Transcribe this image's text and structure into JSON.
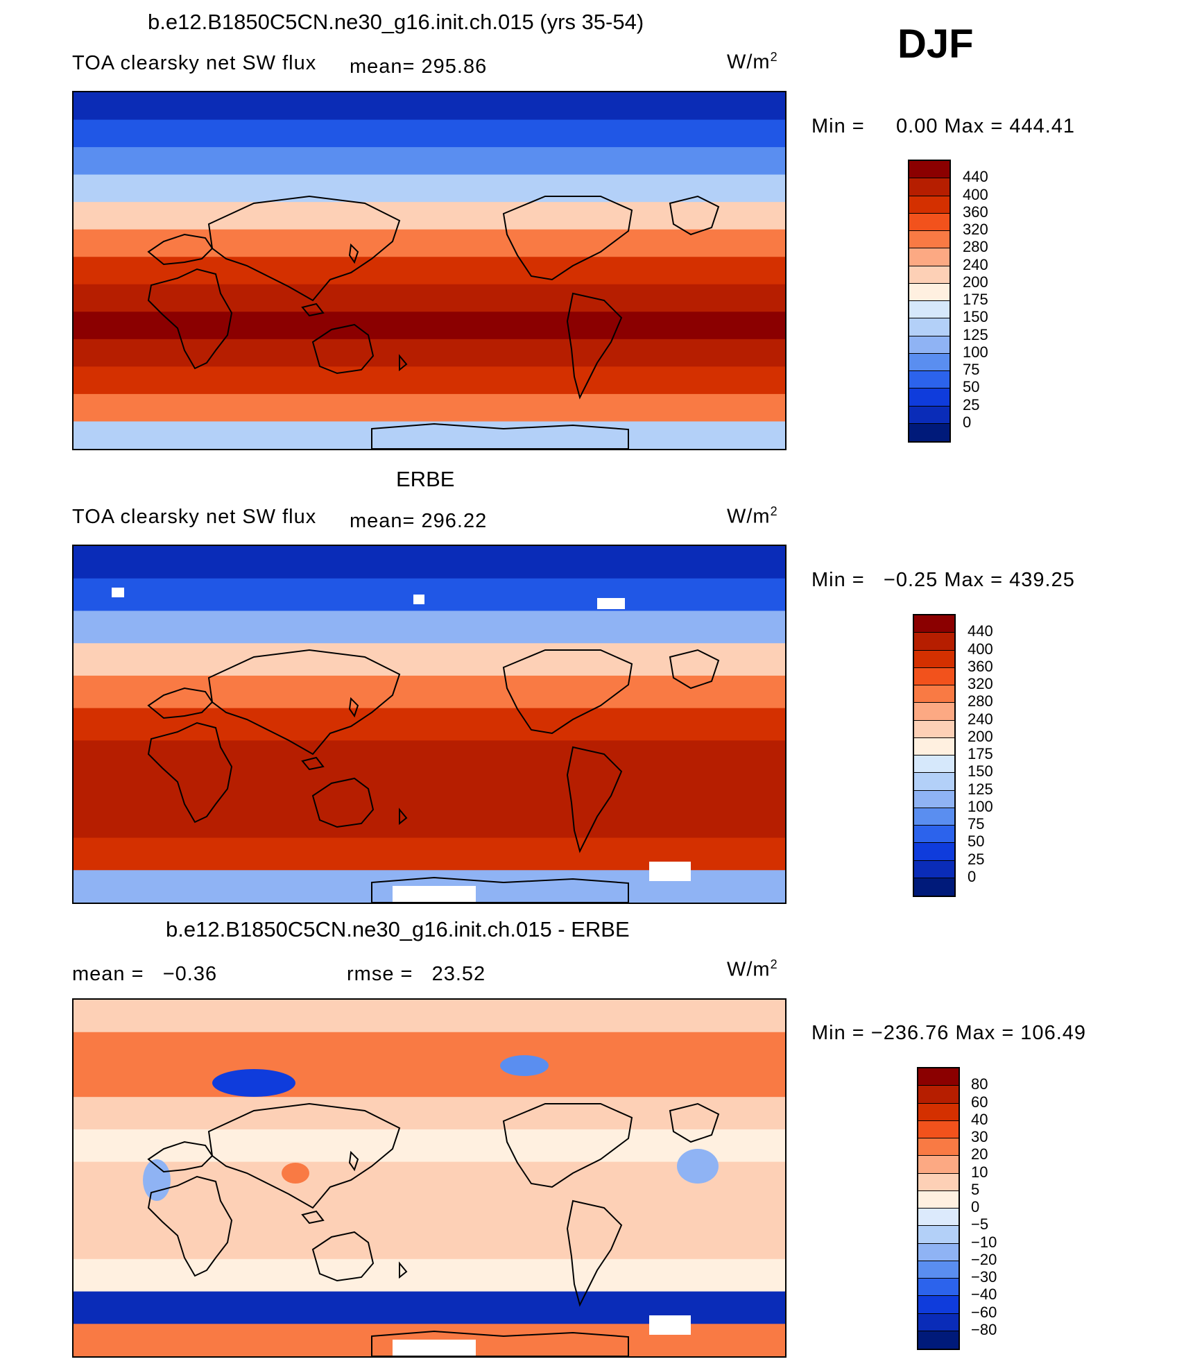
{
  "season": "DJF",
  "panel1": {
    "title": "b.e12.B1850C5CN.ne30_g16.init.ch.015 (yrs 35-54)",
    "variable": "TOA clearsky net SW flux",
    "mean": "mean= 295.86",
    "units": "W/m",
    "units_exp": "2",
    "minmax": "Min =     0.00 Max = 444.41",
    "levels": [
      "440",
      "400",
      "360",
      "320",
      "280",
      "240",
      "200",
      "175",
      "150",
      "125",
      "100",
      "75",
      "50",
      "25",
      "0"
    ],
    "colors": [
      "#8b0000",
      "#b61e00",
      "#d43000",
      "#f2521c",
      "#f97a44",
      "#fca983",
      "#fdd0b6",
      "#fff0e0",
      "#d6e8fb",
      "#b3d0f8",
      "#8fb3f4",
      "#5a8ef0",
      "#2c63ec",
      "#0f3cdc",
      "#0a2cb8",
      "#001a7a"
    ],
    "band_colors": [
      "#0b2cb6",
      "#2057e6",
      "#5a8ef0",
      "#b3d0f8",
      "#fdd0b6",
      "#f97a44",
      "#d43000",
      "#b61e00",
      "#8b0000",
      "#b61e00",
      "#d43000",
      "#f97a44",
      "#b3d0f8"
    ]
  },
  "panel2": {
    "title": "ERBE",
    "variable": "TOA clearsky net SW flux",
    "mean": "mean= 296.22",
    "units": "W/m",
    "units_exp": "2",
    "minmax": "Min =   −0.25 Max = 439.25",
    "levels": [
      "440",
      "400",
      "360",
      "320",
      "280",
      "240",
      "200",
      "175",
      "150",
      "125",
      "100",
      "75",
      "50",
      "25",
      "0"
    ],
    "colors": [
      "#8b0000",
      "#b61e00",
      "#d43000",
      "#f2521c",
      "#f97a44",
      "#fca983",
      "#fdd0b6",
      "#fff0e0",
      "#d6e8fb",
      "#b3d0f8",
      "#8fb3f4",
      "#5a8ef0",
      "#2c63ec",
      "#0f3cdc",
      "#0a2cb8",
      "#001a7a"
    ],
    "band_colors": [
      "#0a2cb8",
      "#2057e6",
      "#8fb3f4",
      "#fdd0b6",
      "#f97a44",
      "#d43000",
      "#b61e00",
      "#b61e00",
      "#b61e00",
      "#d43000",
      "#8fb3f4"
    ]
  },
  "panel3": {
    "title": "b.e12.B1850C5CN.ne30_g16.init.ch.015 - ERBE",
    "mean": "mean =   −0.36",
    "rmse": "rmse =   23.52",
    "units": "W/m",
    "units_exp": "2",
    "minmax": "Min = −236.76 Max = 106.49",
    "levels": [
      "80",
      "60",
      "40",
      "30",
      "20",
      "10",
      "5",
      "0",
      "−5",
      "−10",
      "−20",
      "−30",
      "−40",
      "−60",
      "−80"
    ],
    "colors": [
      "#8b0000",
      "#b61e00",
      "#d43000",
      "#f2521c",
      "#f97a44",
      "#fca983",
      "#fdd0b6",
      "#fff0e0",
      "#dceafc",
      "#b3d0f8",
      "#8fb3f4",
      "#5a8ef0",
      "#2c63ec",
      "#0f3cdc",
      "#0a2cb8",
      "#001a7a"
    ],
    "band_colors": [
      "#fdd0b6",
      "#f97a44",
      "#f97a44",
      "#fdd0b6",
      "#fff0e0",
      "#fdd0b6",
      "#fdd0b6",
      "#fdd0b6",
      "#fff0e0",
      "#0a2cb8",
      "#f97a44"
    ]
  }
}
